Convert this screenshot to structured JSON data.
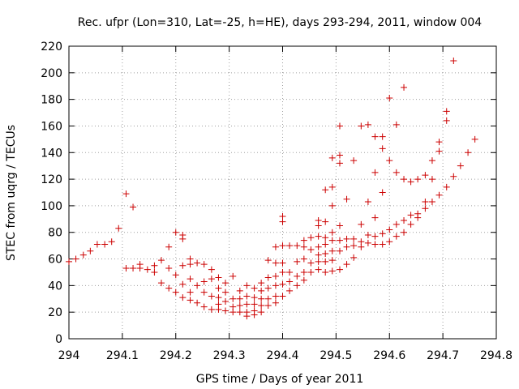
{
  "chart_data": {
    "type": "scatter",
    "title": "Rec. ufpr (Lon=310, Lat=-25, h=HE), days 293-294, 2011, window 004",
    "xlabel": "GPS time / Days of year 2011",
    "ylabel": "STEC from uqrg / TECUs",
    "xlim": [
      294,
      294.8
    ],
    "ylim": [
      0,
      220
    ],
    "xticks": [
      "294",
      "294.1",
      "294.2",
      "294.3",
      "294.4",
      "294.5",
      "294.6",
      "294.7",
      "294.8"
    ],
    "yticks": [
      "0",
      "20",
      "40",
      "60",
      "80",
      "100",
      "120",
      "140",
      "160",
      "180",
      "200",
      "220"
    ],
    "grid": true,
    "marker": "plus",
    "color": "#cc0000",
    "points": [
      [
        294.0,
        58
      ],
      [
        294.013,
        60
      ],
      [
        294.027,
        63
      ],
      [
        294.04,
        66
      ],
      [
        294.053,
        71
      ],
      [
        294.067,
        71
      ],
      [
        294.08,
        73
      ],
      [
        294.093,
        83
      ],
      [
        294.107,
        109
      ],
      [
        294.12,
        99
      ],
      [
        294.107,
        53
      ],
      [
        294.12,
        53
      ],
      [
        294.133,
        56
      ],
      [
        294.133,
        53
      ],
      [
        294.147,
        52
      ],
      [
        294.16,
        55
      ],
      [
        294.16,
        50
      ],
      [
        294.173,
        59
      ],
      [
        294.187,
        69
      ],
      [
        294.2,
        80
      ],
      [
        294.213,
        78
      ],
      [
        294.213,
        75
      ],
      [
        294.173,
        42
      ],
      [
        294.187,
        53
      ],
      [
        294.187,
        38
      ],
      [
        294.2,
        48
      ],
      [
        294.2,
        35
      ],
      [
        294.213,
        55
      ],
      [
        294.213,
        41
      ],
      [
        294.213,
        31
      ],
      [
        294.227,
        56
      ],
      [
        294.227,
        60
      ],
      [
        294.227,
        45
      ],
      [
        294.227,
        35
      ],
      [
        294.227,
        29
      ],
      [
        294.24,
        57
      ],
      [
        294.24,
        40
      ],
      [
        294.24,
        27
      ],
      [
        294.253,
        56
      ],
      [
        294.253,
        43
      ],
      [
        294.253,
        35
      ],
      [
        294.253,
        24
      ],
      [
        294.267,
        52
      ],
      [
        294.267,
        45
      ],
      [
        294.267,
        32
      ],
      [
        294.267,
        22
      ],
      [
        294.28,
        46
      ],
      [
        294.28,
        38
      ],
      [
        294.28,
        31
      ],
      [
        294.28,
        26
      ],
      [
        294.28,
        22
      ],
      [
        294.293,
        42
      ],
      [
        294.293,
        35
      ],
      [
        294.293,
        28
      ],
      [
        294.293,
        21
      ],
      [
        294.307,
        47
      ],
      [
        294.307,
        30
      ],
      [
        294.307,
        24
      ],
      [
        294.307,
        20
      ],
      [
        294.32,
        36
      ],
      [
        294.32,
        30
      ],
      [
        294.32,
        25
      ],
      [
        294.32,
        20
      ],
      [
        294.333,
        40
      ],
      [
        294.333,
        32
      ],
      [
        294.333,
        26
      ],
      [
        294.333,
        20
      ],
      [
        294.333,
        17
      ],
      [
        294.347,
        38
      ],
      [
        294.347,
        31
      ],
      [
        294.347,
        26
      ],
      [
        294.347,
        21
      ],
      [
        294.347,
        18
      ],
      [
        294.36,
        42
      ],
      [
        294.36,
        36
      ],
      [
        294.36,
        30
      ],
      [
        294.36,
        25
      ],
      [
        294.36,
        20
      ],
      [
        294.373,
        59
      ],
      [
        294.373,
        46
      ],
      [
        294.373,
        38
      ],
      [
        294.373,
        30
      ],
      [
        294.373,
        25
      ],
      [
        294.387,
        69
      ],
      [
        294.387,
        57
      ],
      [
        294.387,
        47
      ],
      [
        294.387,
        40
      ],
      [
        294.387,
        32
      ],
      [
        294.387,
        27
      ],
      [
        294.4,
        92
      ],
      [
        294.4,
        88
      ],
      [
        294.4,
        70
      ],
      [
        294.4,
        57
      ],
      [
        294.4,
        50
      ],
      [
        294.4,
        41
      ],
      [
        294.4,
        32
      ],
      [
        294.413,
        70
      ],
      [
        294.413,
        50
      ],
      [
        294.413,
        43
      ],
      [
        294.413,
        36
      ],
      [
        294.427,
        70
      ],
      [
        294.427,
        58
      ],
      [
        294.427,
        47
      ],
      [
        294.427,
        40
      ],
      [
        294.44,
        74
      ],
      [
        294.44,
        69
      ],
      [
        294.44,
        60
      ],
      [
        294.44,
        50
      ],
      [
        294.44,
        44
      ],
      [
        294.453,
        76
      ],
      [
        294.453,
        67
      ],
      [
        294.453,
        57
      ],
      [
        294.453,
        50
      ],
      [
        294.467,
        89
      ],
      [
        294.467,
        85
      ],
      [
        294.467,
        77
      ],
      [
        294.467,
        69
      ],
      [
        294.467,
        63
      ],
      [
        294.467,
        58
      ],
      [
        294.467,
        52
      ],
      [
        294.48,
        112
      ],
      [
        294.48,
        88
      ],
      [
        294.48,
        76
      ],
      [
        294.48,
        71
      ],
      [
        294.48,
        64
      ],
      [
        294.48,
        58
      ],
      [
        294.48,
        50
      ],
      [
        294.493,
        136
      ],
      [
        294.493,
        114
      ],
      [
        294.493,
        100
      ],
      [
        294.493,
        80
      ],
      [
        294.493,
        74
      ],
      [
        294.493,
        66
      ],
      [
        294.493,
        59
      ],
      [
        294.493,
        51
      ],
      [
        294.507,
        160
      ],
      [
        294.507,
        138
      ],
      [
        294.507,
        132
      ],
      [
        294.507,
        85
      ],
      [
        294.507,
        74
      ],
      [
        294.507,
        66
      ],
      [
        294.507,
        52
      ],
      [
        294.52,
        105
      ],
      [
        294.52,
        75
      ],
      [
        294.52,
        69
      ],
      [
        294.52,
        56
      ],
      [
        294.533,
        134
      ],
      [
        294.533,
        75
      ],
      [
        294.533,
        70
      ],
      [
        294.533,
        61
      ],
      [
        294.547,
        160
      ],
      [
        294.547,
        86
      ],
      [
        294.547,
        73
      ],
      [
        294.547,
        69
      ],
      [
        294.56,
        161
      ],
      [
        294.56,
        103
      ],
      [
        294.56,
        78
      ],
      [
        294.56,
        72
      ],
      [
        294.573,
        152
      ],
      [
        294.573,
        125
      ],
      [
        294.573,
        91
      ],
      [
        294.573,
        77
      ],
      [
        294.573,
        71
      ],
      [
        294.587,
        152
      ],
      [
        294.587,
        143
      ],
      [
        294.587,
        110
      ],
      [
        294.587,
        79
      ],
      [
        294.587,
        71
      ],
      [
        294.6,
        181
      ],
      [
        294.6,
        134
      ],
      [
        294.6,
        82
      ],
      [
        294.6,
        73
      ],
      [
        294.613,
        161
      ],
      [
        294.613,
        125
      ],
      [
        294.613,
        86
      ],
      [
        294.613,
        77
      ],
      [
        294.627,
        189
      ],
      [
        294.627,
        120
      ],
      [
        294.627,
        89
      ],
      [
        294.627,
        80
      ],
      [
        294.64,
        118
      ],
      [
        294.64,
        93
      ],
      [
        294.64,
        86
      ],
      [
        294.653,
        120
      ],
      [
        294.653,
        94
      ],
      [
        294.653,
        91
      ],
      [
        294.667,
        123
      ],
      [
        294.667,
        103
      ],
      [
        294.667,
        98
      ],
      [
        294.68,
        134
      ],
      [
        294.68,
        120
      ],
      [
        294.68,
        103
      ],
      [
        294.693,
        148
      ],
      [
        294.693,
        141
      ],
      [
        294.693,
        108
      ],
      [
        294.707,
        171
      ],
      [
        294.707,
        164
      ],
      [
        294.707,
        114
      ],
      [
        294.72,
        209
      ],
      [
        294.72,
        122
      ],
      [
        294.733,
        130
      ],
      [
        294.747,
        140
      ],
      [
        294.76,
        150
      ]
    ]
  }
}
